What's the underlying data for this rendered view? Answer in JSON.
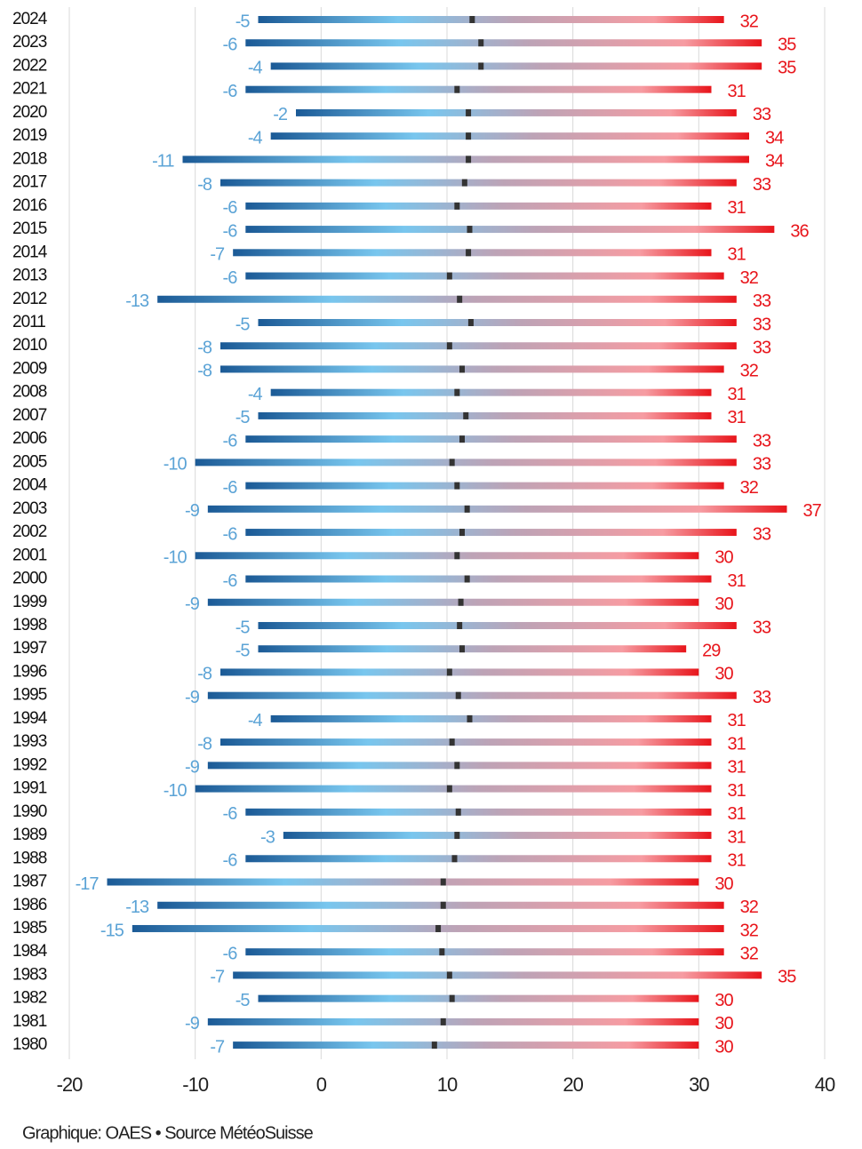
{
  "chart_data": {
    "type": "range",
    "categories": [
      "2024",
      "2023",
      "2022",
      "2021",
      "2020",
      "2019",
      "2018",
      "2017",
      "2016",
      "2015",
      "2014",
      "2013",
      "2012",
      "2011",
      "2010",
      "2009",
      "2008",
      "2007",
      "2006",
      "2005",
      "2004",
      "2003",
      "2002",
      "2001",
      "2000",
      "1999",
      "1998",
      "1997",
      "1996",
      "1995",
      "1994",
      "1993",
      "1992",
      "1991",
      "1990",
      "1989",
      "1988",
      "1987",
      "1986",
      "1985",
      "1984",
      "1983",
      "1982",
      "1981",
      "1980"
    ],
    "low": [
      -5,
      -6,
      -4,
      -6,
      -2,
      -4,
      -11,
      -8,
      -6,
      -6,
      -7,
      -6,
      -13,
      -5,
      -8,
      -8,
      -4,
      -5,
      -6,
      -10,
      -6,
      -9,
      -6,
      -10,
      -6,
      -9,
      -5,
      -5,
      -8,
      -9,
      -4,
      -8,
      -9,
      -10,
      -6,
      -3,
      -6,
      -17,
      -13,
      -15,
      -6,
      -7,
      -5,
      -9,
      -7
    ],
    "high": [
      32,
      35,
      35,
      31,
      33,
      34,
      34,
      33,
      31,
      36,
      31,
      32,
      33,
      33,
      33,
      32,
      31,
      31,
      33,
      33,
      32,
      37,
      33,
      30,
      31,
      30,
      33,
      29,
      30,
      33,
      31,
      31,
      31,
      31,
      31,
      31,
      31,
      30,
      32,
      32,
      32,
      35,
      30,
      30,
      30
    ],
    "mean": [
      12.0,
      12.7,
      12.7,
      10.8,
      11.7,
      11.7,
      11.7,
      11.4,
      10.8,
      11.8,
      11.7,
      10.2,
      11.0,
      11.9,
      10.2,
      11.2,
      10.8,
      11.5,
      11.2,
      10.4,
      10.8,
      11.6,
      11.2,
      10.8,
      11.6,
      11.1,
      11.0,
      11.2,
      10.2,
      10.9,
      11.8,
      10.4,
      10.8,
      10.2,
      10.9,
      10.8,
      10.6,
      9.7,
      9.7,
      9.3,
      9.6,
      10.2,
      10.4,
      9.7,
      9.0
    ],
    "low_color": "#5ba3d6",
    "high_color": "#e8151b",
    "mean_color": "#333333",
    "xlim": [
      -20,
      40
    ],
    "xticks": [
      -20,
      -10,
      0,
      10,
      20,
      30,
      40
    ],
    "grid": true,
    "source": "Graphique: OAES • Source MétéoSuisse"
  }
}
